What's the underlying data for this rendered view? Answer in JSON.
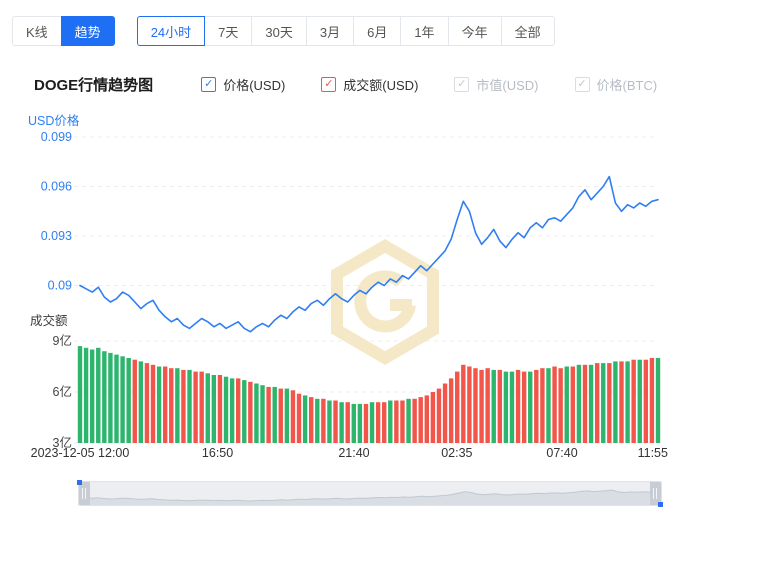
{
  "toolbar": {
    "view_tabs": [
      {
        "label": "K线",
        "active": false
      },
      {
        "label": "趋势",
        "active": true
      }
    ],
    "range_tabs": [
      {
        "label": "24小时",
        "active": true
      },
      {
        "label": "7天",
        "active": false
      },
      {
        "label": "30天",
        "active": false
      },
      {
        "label": "3月",
        "active": false
      },
      {
        "label": "6月",
        "active": false
      },
      {
        "label": "1年",
        "active": false
      },
      {
        "label": "今年",
        "active": false
      },
      {
        "label": "全部",
        "active": false
      }
    ]
  },
  "header": {
    "title": "DOGE行情趋势图"
  },
  "legend": {
    "items": [
      {
        "label": "价格(USD)",
        "checked": true,
        "color": "#2f7ff2"
      },
      {
        "label": "成交额(USD)",
        "checked": true,
        "color": "#f0544c"
      },
      {
        "label": "市值(USD)",
        "checked": false,
        "color": "#c3c7ce"
      },
      {
        "label": "价格(BTC)",
        "checked": false,
        "color": "#c3c7ce"
      }
    ]
  },
  "icons": {
    "check": "✓"
  },
  "chart_data": {
    "type": "line+bar",
    "title": "DOGE行情趋势图",
    "x_range_label": "24小时",
    "x_ticks": [
      "2023-12-05 12:00",
      "16:50",
      "21:40",
      "02:35",
      "07:40",
      "11:55"
    ],
    "price": {
      "name": "价格(USD)",
      "axis_title": "USD价格",
      "ticks": [
        0.099,
        0.096,
        0.093,
        0.09
      ],
      "color": "#2f7ff2",
      "values": [
        0.09,
        0.0898,
        0.0896,
        0.0899,
        0.0893,
        0.089,
        0.0892,
        0.0896,
        0.0894,
        0.089,
        0.0886,
        0.0889,
        0.0891,
        0.0885,
        0.0881,
        0.0878,
        0.088,
        0.0876,
        0.0874,
        0.0877,
        0.088,
        0.0878,
        0.0875,
        0.0877,
        0.0874,
        0.0876,
        0.0878,
        0.0874,
        0.0872,
        0.0875,
        0.0877,
        0.0875,
        0.0879,
        0.0882,
        0.088,
        0.0884,
        0.0887,
        0.0885,
        0.0889,
        0.0891,
        0.0888,
        0.0892,
        0.0895,
        0.0892,
        0.089,
        0.0894,
        0.0897,
        0.0895,
        0.0899,
        0.0902,
        0.09,
        0.0904,
        0.0902,
        0.0906,
        0.0904,
        0.0908,
        0.0912,
        0.0909,
        0.0913,
        0.0917,
        0.0921,
        0.0928,
        0.094,
        0.0951,
        0.0945,
        0.0932,
        0.0925,
        0.0929,
        0.0934,
        0.0927,
        0.0923,
        0.0928,
        0.0932,
        0.0929,
        0.0935,
        0.0938,
        0.0935,
        0.094,
        0.0941,
        0.0939,
        0.0943,
        0.0947,
        0.0954,
        0.0958,
        0.0952,
        0.0956,
        0.096,
        0.0966,
        0.095,
        0.0945,
        0.0949,
        0.0947,
        0.095,
        0.0948,
        0.0951,
        0.0952
      ]
    },
    "volume": {
      "name": "成交额(USD)",
      "axis_title": "成交额",
      "ticks": [
        "9亿",
        "6亿",
        "3亿"
      ],
      "tick_values": [
        9,
        6,
        3
      ],
      "unit": "亿",
      "up_color": "#2eb56d",
      "down_color": "#f2564a",
      "values": [
        8.7,
        8.6,
        8.5,
        8.6,
        8.4,
        8.3,
        8.2,
        8.1,
        8.0,
        7.9,
        7.8,
        7.7,
        7.6,
        7.5,
        7.5,
        7.4,
        7.4,
        7.3,
        7.3,
        7.2,
        7.2,
        7.1,
        7.0,
        7.0,
        6.9,
        6.8,
        6.8,
        6.7,
        6.6,
        6.5,
        6.4,
        6.3,
        6.3,
        6.2,
        6.2,
        6.1,
        5.9,
        5.8,
        5.7,
        5.6,
        5.6,
        5.5,
        5.5,
        5.4,
        5.4,
        5.3,
        5.3,
        5.3,
        5.4,
        5.4,
        5.4,
        5.5,
        5.5,
        5.5,
        5.6,
        5.6,
        5.7,
        5.8,
        6.0,
        6.2,
        6.5,
        6.8,
        7.2,
        7.6,
        7.5,
        7.4,
        7.3,
        7.4,
        7.3,
        7.3,
        7.2,
        7.2,
        7.3,
        7.2,
        7.2,
        7.3,
        7.4,
        7.4,
        7.5,
        7.4,
        7.5,
        7.5,
        7.6,
        7.6,
        7.6,
        7.7,
        7.7,
        7.7,
        7.8,
        7.8,
        7.8,
        7.9,
        7.9,
        7.9,
        8.0,
        8.0
      ],
      "directions": [
        "gggggggg",
        "grgrrgrr",
        "grgrrggr",
        "ggrgrggr",
        "grgrrgrg",
        "rgrgrggr",
        "grrgrrgr",
        "rrrrrrrr",
        "rrrrgrgg",
        "rrgrrgrr",
        "grgrgrgr",
        "grgrgrrg"
      ]
    },
    "legend_position": "top",
    "grid": "horizontal-dashed"
  }
}
